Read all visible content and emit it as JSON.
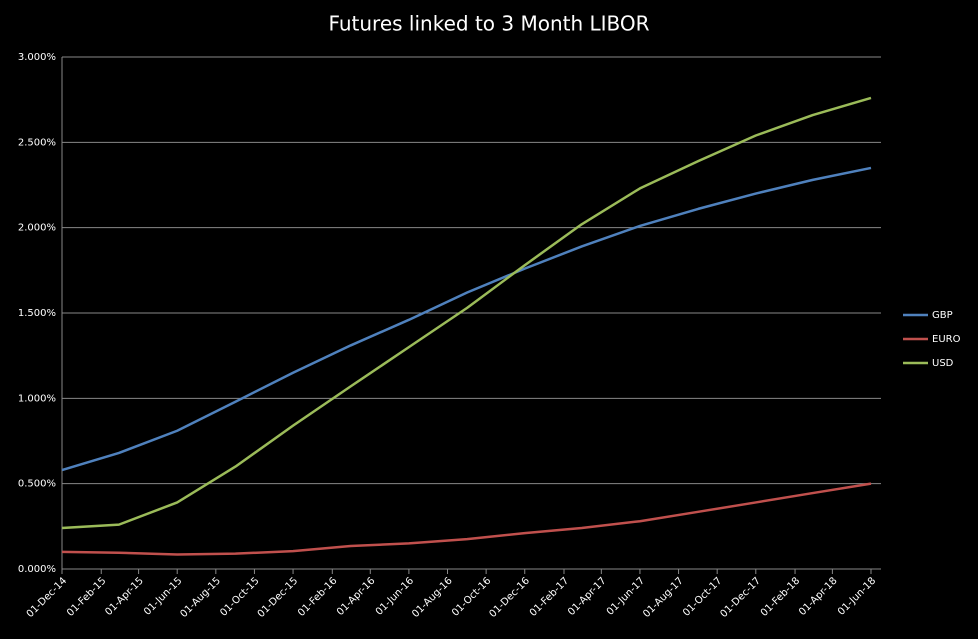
{
  "chart_data": {
    "type": "line",
    "title": "Futures linked to 3 Month LIBOR",
    "x": [
      "2014-12-01",
      "2015-03-01",
      "2015-06-01",
      "2015-09-01",
      "2015-12-01",
      "2016-03-01",
      "2016-06-01",
      "2016-09-01",
      "2016-12-01",
      "2017-03-01",
      "2017-06-01",
      "2017-09-01",
      "2017-12-01",
      "2018-03-01",
      "2018-06-01"
    ],
    "xlim": [
      "2014-12-01",
      "2018-06-01"
    ],
    "xticks": [
      {
        "value": "2014-12-01",
        "label": "01-Dec-14"
      },
      {
        "value": "2015-02-01",
        "label": "01-Feb-15"
      },
      {
        "value": "2015-04-01",
        "label": "01-Apr-15"
      },
      {
        "value": "2015-06-01",
        "label": "01-Jun-15"
      },
      {
        "value": "2015-08-01",
        "label": "01-Aug-15"
      },
      {
        "value": "2015-10-01",
        "label": "01-Oct-15"
      },
      {
        "value": "2015-12-01",
        "label": "01-Dec-15"
      },
      {
        "value": "2016-02-01",
        "label": "01-Feb-16"
      },
      {
        "value": "2016-04-01",
        "label": "01-Apr-16"
      },
      {
        "value": "2016-06-01",
        "label": "01-Jun-16"
      },
      {
        "value": "2016-08-01",
        "label": "01-Aug-16"
      },
      {
        "value": "2016-10-01",
        "label": "01-Oct-16"
      },
      {
        "value": "2016-12-01",
        "label": "01-Dec-16"
      },
      {
        "value": "2017-02-01",
        "label": "01-Feb-17"
      },
      {
        "value": "2017-04-01",
        "label": "01-Apr-17"
      },
      {
        "value": "2017-06-01",
        "label": "01-Jun-17"
      },
      {
        "value": "2017-08-01",
        "label": "01-Aug-17"
      },
      {
        "value": "2017-10-01",
        "label": "01-Oct-17"
      },
      {
        "value": "2017-12-01",
        "label": "01-Dec-17"
      },
      {
        "value": "2018-02-01",
        "label": "01-Feb-18"
      },
      {
        "value": "2018-04-01",
        "label": "01-Apr-18"
      },
      {
        "value": "2018-06-01",
        "label": "01-Jun-18"
      }
    ],
    "ylim": [
      0,
      3
    ],
    "yticks": [
      {
        "value": 0,
        "label": "0.000%"
      },
      {
        "value": 0.5,
        "label": "0.500%"
      },
      {
        "value": 1,
        "label": "1.000%"
      },
      {
        "value": 1.5,
        "label": "1.500%"
      },
      {
        "value": 2,
        "label": "2.000%"
      },
      {
        "value": 2.5,
        "label": "2.500%"
      },
      {
        "value": 3,
        "label": "3.000%"
      }
    ],
    "grid": true,
    "legend": "right",
    "series": [
      {
        "name": "GBP",
        "color": "#4f81bd",
        "values": [
          0.58,
          0.68,
          0.81,
          0.98,
          1.15,
          1.31,
          1.46,
          1.62,
          1.76,
          1.89,
          2.01,
          2.11,
          2.2,
          2.28,
          2.35
        ]
      },
      {
        "name": "EURO",
        "color": "#c0504d",
        "values": [
          0.1,
          0.095,
          0.085,
          0.09,
          0.105,
          0.135,
          0.15,
          0.175,
          0.21,
          0.24,
          0.28,
          0.335,
          0.39,
          0.445,
          0.5
        ]
      },
      {
        "name": "USD",
        "color": "#9bbb59",
        "values": [
          0.24,
          0.26,
          0.39,
          0.6,
          0.84,
          1.07,
          1.3,
          1.53,
          1.78,
          2.02,
          2.23,
          2.39,
          2.54,
          2.66,
          2.76
        ]
      }
    ]
  }
}
